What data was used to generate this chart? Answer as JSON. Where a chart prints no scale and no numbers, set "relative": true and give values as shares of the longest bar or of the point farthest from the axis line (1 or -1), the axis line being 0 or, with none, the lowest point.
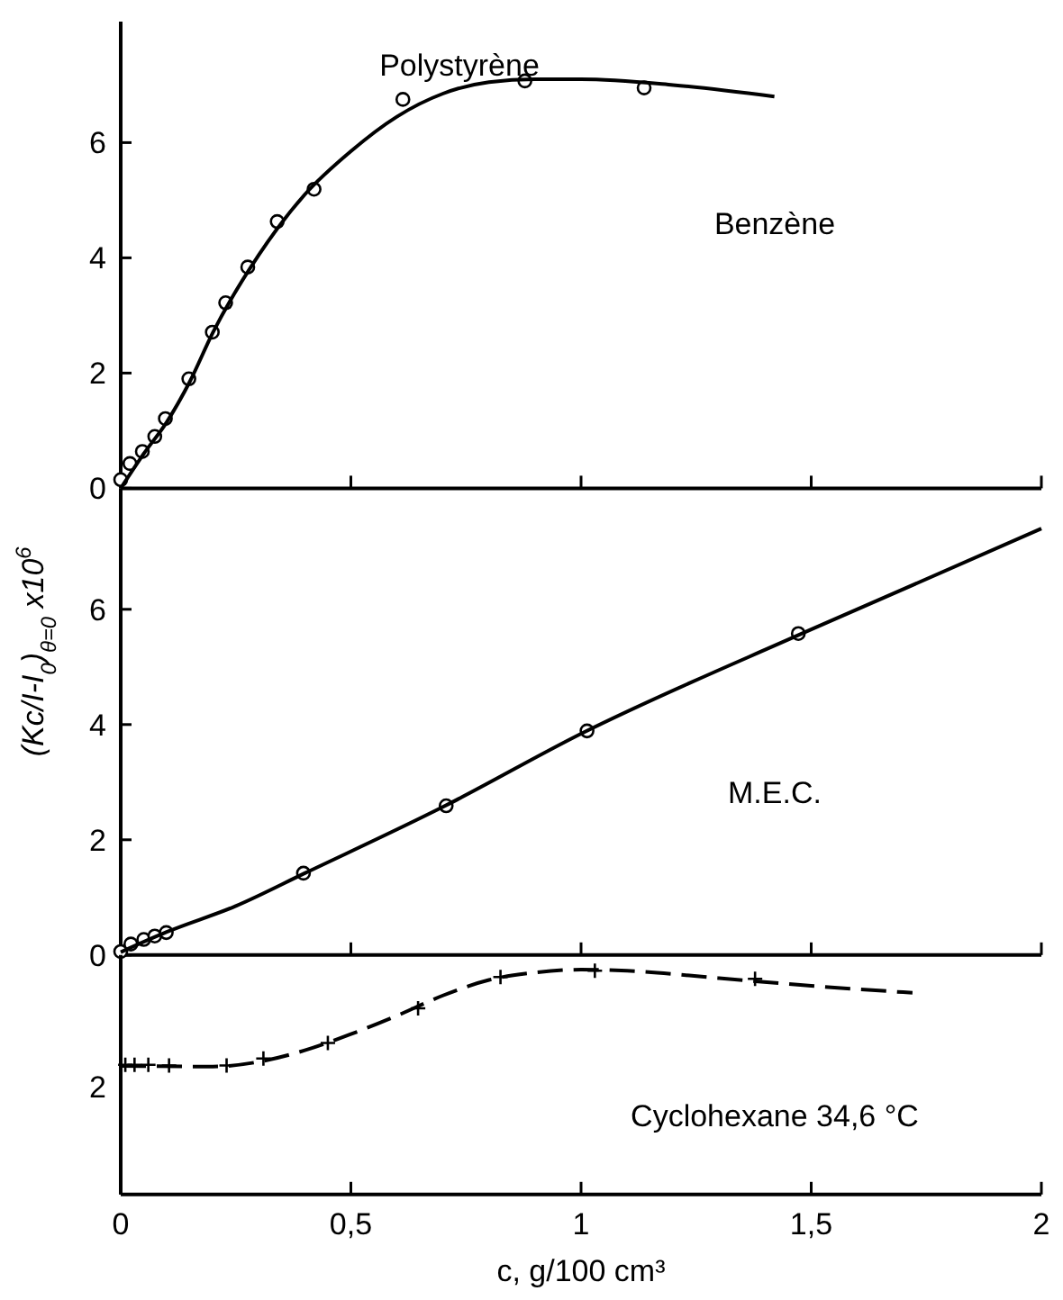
{
  "chart_data": [
    {
      "type": "line",
      "title": "Polystyrène",
      "annotations": [
        "Benzène"
      ],
      "xlim": [
        0,
        2
      ],
      "xticks": [
        {
          "value": 0,
          "label": null
        },
        {
          "value": 0.5,
          "label": null
        },
        {
          "value": 1,
          "label": null
        },
        {
          "value": 1.5,
          "label": null
        },
        {
          "value": 2,
          "label": null
        }
      ],
      "ylim": [
        0,
        8.1
      ],
      "yticks": [
        0,
        2,
        4,
        6
      ],
      "tick_labels": "y",
      "grid": false,
      "series": [
        {
          "type": "scatter",
          "color": "#000000",
          "marker": "circle",
          "x": [
            0,
            0.02,
            0.047,
            0.074,
            0.097,
            0.148,
            0.199,
            0.228,
            0.276,
            0.34,
            0.42,
            0.613,
            0.878,
            1.137
          ],
          "values": [
            0.15,
            0.43,
            0.64,
            0.9,
            1.21,
            1.9,
            2.71,
            3.22,
            3.84,
            4.63,
            5.19,
            6.75,
            7.07,
            6.95
          ]
        },
        {
          "type": "line",
          "color": "#000000",
          "marker": "none",
          "line_style": "solid",
          "x": [
            0,
            0.05,
            0.1,
            0.15,
            0.2,
            0.3,
            0.4,
            0.5,
            0.6,
            0.7,
            0.8,
            0.9,
            1.0,
            1.2,
            1.42
          ],
          "values": [
            0,
            0.6,
            1.15,
            1.85,
            2.7,
            4.05,
            5.1,
            5.85,
            6.45,
            6.85,
            7.05,
            7.1,
            7.1,
            7.0,
            6.8
          ]
        }
      ]
    },
    {
      "type": "line",
      "ylabel": "(Kc/I-I$_{0}$)$_{θ=0}$ x10$^{6}$",
      "annotations": [
        "M.E.C."
      ],
      "xlim": [
        0,
        2
      ],
      "xticks": [
        {
          "value": 0,
          "label": null
        },
        {
          "value": 0.5,
          "label": null
        },
        {
          "value": 1,
          "label": null
        },
        {
          "value": 1.5,
          "label": null
        },
        {
          "value": 2,
          "label": null
        }
      ],
      "ylim": [
        0,
        8.1
      ],
      "yticks": [
        0,
        2,
        4,
        6
      ],
      "tick_labels": "y",
      "grid": false,
      "series": [
        {
          "type": "scatter",
          "color": "#000000",
          "marker": "circle",
          "x": [
            0,
            0.022,
            0.05,
            0.074,
            0.099,
            0.397,
            0.707,
            1.013,
            1.472
          ],
          "values": [
            0.06,
            0.19,
            0.27,
            0.33,
            0.39,
            1.42,
            2.59,
            3.89,
            5.58
          ]
        },
        {
          "type": "line",
          "color": "#000000",
          "marker": "none",
          "line_style": "solid",
          "x": [
            0,
            0.1,
            0.25,
            0.4,
            0.7,
            1.0,
            1.5,
            2.0
          ],
          "values": [
            0.05,
            0.4,
            0.85,
            1.42,
            2.57,
            3.84,
            5.65,
            7.4
          ]
        }
      ]
    },
    {
      "type": "line",
      "xlabel": "c, g/100 cm³",
      "annotations": [
        "Cyclohexane 34,6 °C",
        "2"
      ],
      "xlim": [
        0,
        2
      ],
      "xticks": [
        {
          "value": 0,
          "label": "0"
        },
        {
          "value": 0.5,
          "label": "0,5"
        },
        {
          "value": 1,
          "label": "1"
        },
        {
          "value": 1.5,
          "label": "1,5"
        },
        {
          "value": 2,
          "label": "2"
        }
      ],
      "relative": true,
      "grid": false,
      "series": [
        {
          "type": "scatter",
          "color": "#000000",
          "marker": "cross",
          "x": [
            0.01,
            0.03,
            0.06,
            0.105,
            0.23,
            0.31,
            0.45,
            0.646,
            0.825,
            1.03,
            1.378
          ],
          "values": [
            0.577,
            0.577,
            0.577,
            0.574,
            0.574,
            0.605,
            0.674,
            0.828,
            0.967,
            0.995,
            0.959
          ]
        },
        {
          "type": "line",
          "color": "#000000",
          "marker": "none",
          "line_style": "dashed",
          "x": [
            0,
            0.2,
            0.3,
            0.4,
            0.5,
            0.6,
            0.7,
            0.8,
            0.9,
            1.0,
            1.1,
            1.3,
            1.5,
            1.72
          ],
          "values": [
            0.572,
            0.569,
            0.59,
            0.641,
            0.713,
            0.795,
            0.885,
            0.954,
            0.987,
            1,
            0.995,
            0.962,
            0.928,
            0.897
          ]
        }
      ]
    }
  ]
}
